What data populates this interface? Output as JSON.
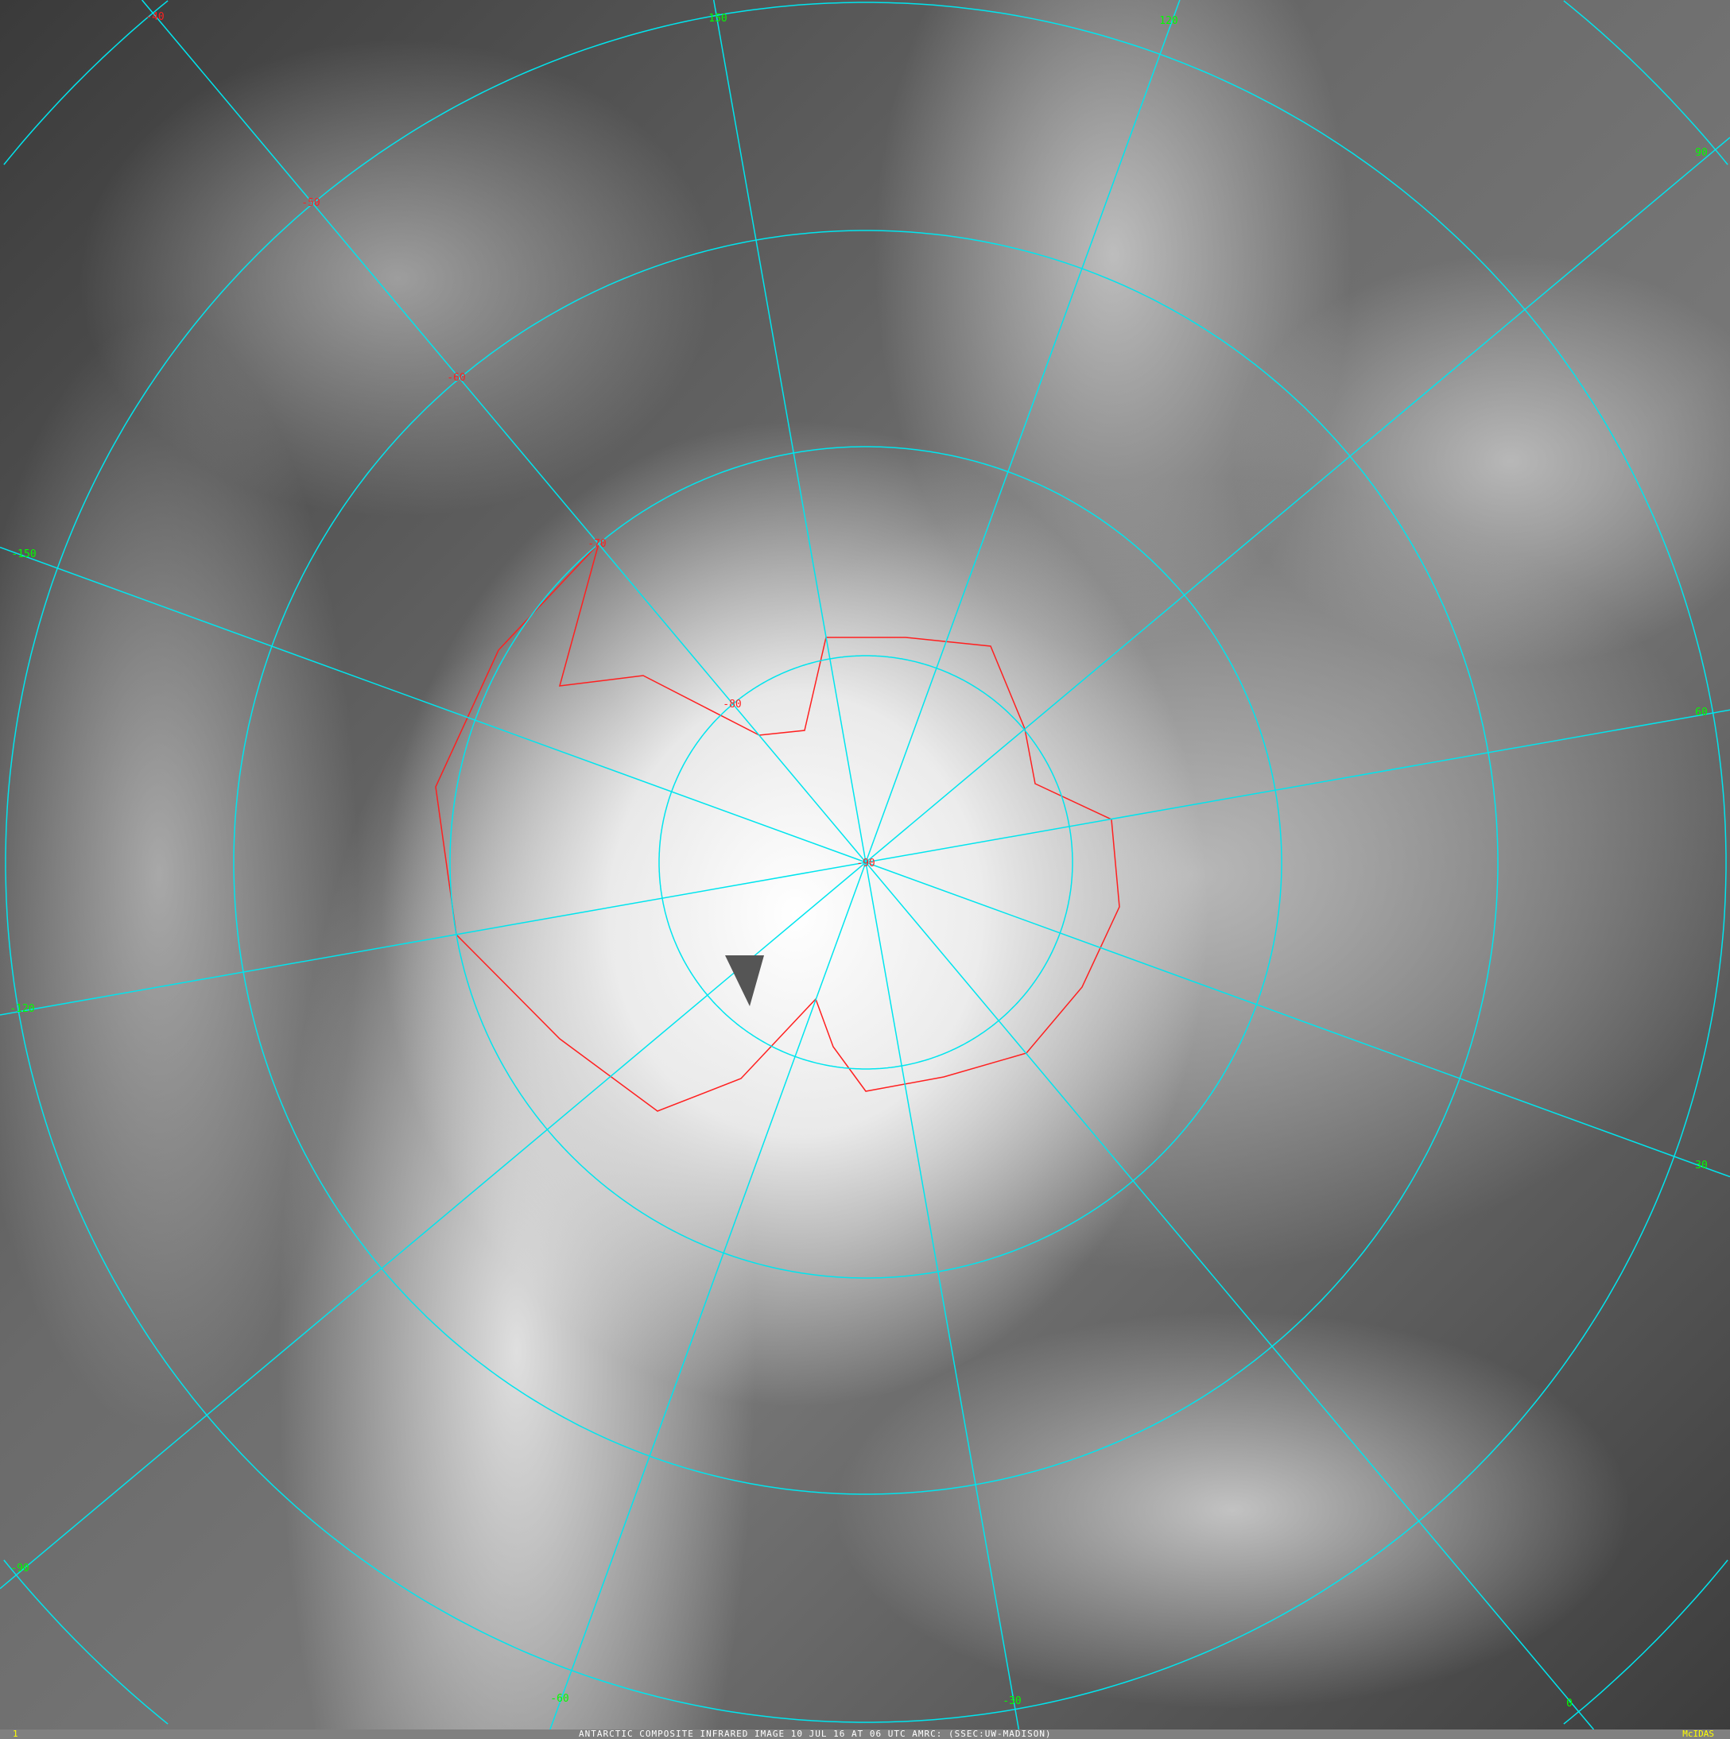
{
  "caption": {
    "frame_number": "1",
    "title": "ANTARCTIC COMPOSITE INFRARED IMAGE 10 JUL 16 AT 06 UTC AMRC: (SSEC:UW-MADISON)",
    "brand": "McIDAS"
  },
  "map": {
    "projection": "south polar stereographic",
    "grid_color": "#00e5ee",
    "coastline_color": "#ff2020",
    "latitude_label_color": "#ff2020",
    "longitude_label_color": "#00ff00",
    "latitude_labels": [
      "-40",
      "-50",
      "-60",
      "-70",
      "-80",
      "-90"
    ],
    "longitude_labels": [
      "150",
      "120",
      "90",
      "60",
      "30",
      "0",
      "-30",
      "-60",
      "-90",
      "-120",
      "-150"
    ]
  }
}
